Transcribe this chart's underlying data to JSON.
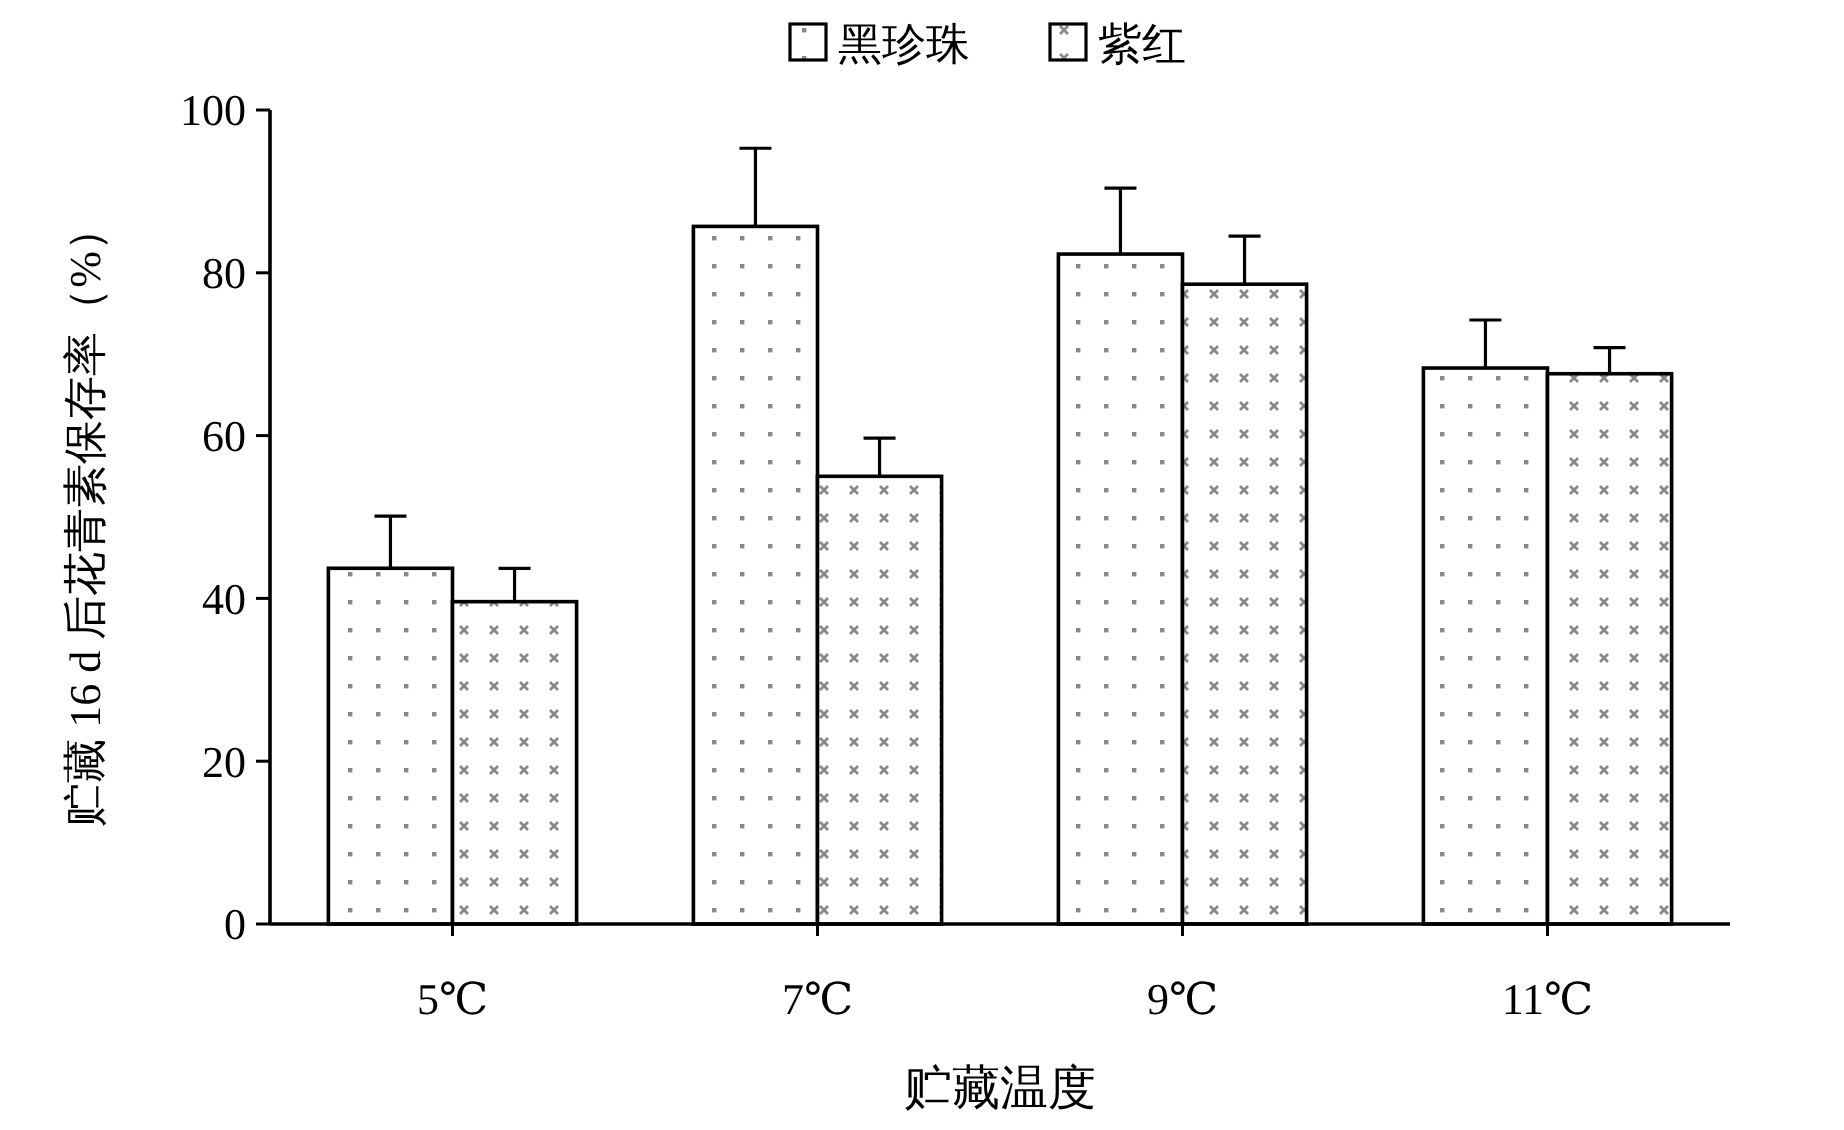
{
  "chart_data": {
    "type": "bar",
    "xlabel": "贮藏温度",
    "ylabel": "贮藏 16 d 后花青素保存率（%）",
    "categories": [
      "5℃",
      "7℃",
      "9℃",
      "11℃"
    ],
    "series": [
      {
        "name": "黑珍珠",
        "color": "#000000",
        "values": [
          43.7,
          85.7,
          82.3,
          68.3
        ],
        "errors": [
          6.4,
          9.6,
          8.1,
          5.9
        ]
      },
      {
        "name": "紫红",
        "color": "#000000",
        "values": [
          39.6,
          55.0,
          78.6,
          67.6
        ],
        "errors": [
          4.1,
          4.7,
          5.9,
          3.2
        ]
      }
    ],
    "ylim": [
      0,
      100
    ],
    "yticks": [
      0,
      20,
      40,
      60,
      80,
      100
    ],
    "grid": false,
    "legend": "top"
  }
}
